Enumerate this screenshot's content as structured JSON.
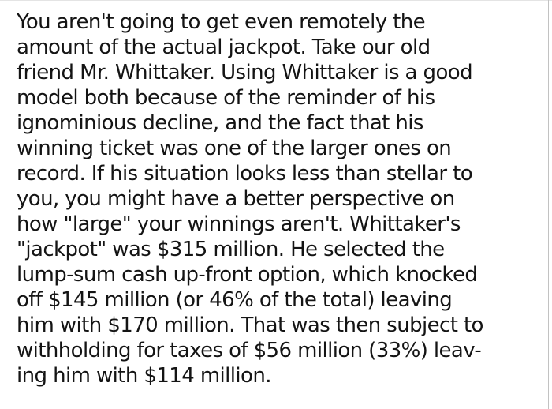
{
  "page": {
    "background": "#ffffff",
    "border_color": "#c2c2c2",
    "top_border_color": "#e4e4e4",
    "text_color": "#141414"
  },
  "text": {
    "lines": [
      "You aren't going to get even remotely the",
      "amount of the actual jackpot. Take our old",
      "friend Mr. Whittaker. Using Whittaker is a good",
      "model both because of the reminder of his",
      "ignominious decline, and the fact that his",
      "winning ticket was one of the larger ones on",
      "record. If his situation looks less than stellar to",
      "you, you might have a better perspective on",
      "how \"large\" your winnings aren't. Whittaker's",
      "\"jackpot\" was $315 million. He selected the",
      "lump-sum cash up-front option, which knocked",
      "off $145 million (or 46% of the total) leaving",
      "him with $170 million. That was then subject to",
      "withholding for taxes of $56 million (33%) leav-",
      "ing him with $114 million."
    ]
  }
}
